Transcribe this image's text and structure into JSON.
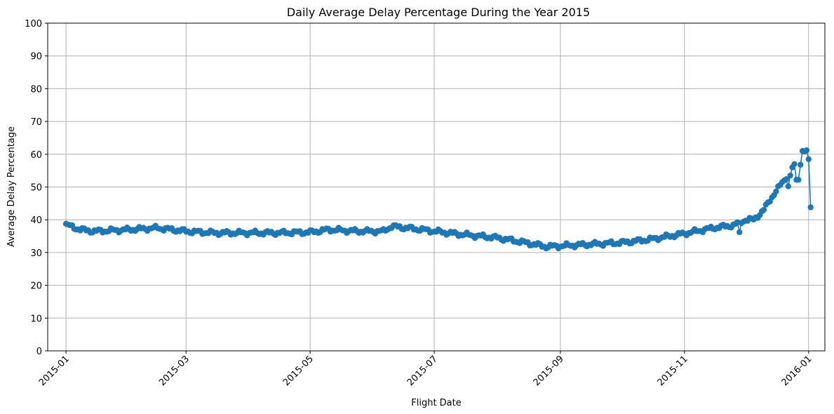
{
  "chart_data": {
    "type": "line",
    "title": "Daily Average Delay Percentage During the Year 2015",
    "xlabel": "Flight Date",
    "ylabel": "Average Delay Percentage",
    "ylim": [
      0,
      100
    ],
    "yticks": [
      0,
      10,
      20,
      30,
      40,
      50,
      60,
      70,
      80,
      90,
      100
    ],
    "ytick_labels": [
      "0",
      "10",
      "20",
      "30",
      "40",
      "50",
      "60",
      "70",
      "80",
      "90",
      "100"
    ],
    "xlim": [
      "2014-12-23",
      "2016-01-09"
    ],
    "xticks": [
      "2015-01-01",
      "2015-03-01",
      "2015-05-01",
      "2015-07-01",
      "2015-09-01",
      "2015-11-01",
      "2016-01-01"
    ],
    "xtick_labels": [
      "2015-01",
      "2015-03",
      "2015-05",
      "2015-07",
      "2015-09",
      "2015-11",
      "2016-01"
    ],
    "grid": true,
    "series_color": "#1f77b4",
    "marker": "circle",
    "anchors": [
      [
        "2015-01-01",
        38.5
      ],
      [
        "2015-01-08",
        37.0
      ],
      [
        "2015-01-15",
        36.5
      ],
      [
        "2015-02-01",
        37.0
      ],
      [
        "2015-02-15",
        37.5
      ],
      [
        "2015-03-01",
        36.5
      ],
      [
        "2015-03-15",
        36.0
      ],
      [
        "2015-04-01",
        36.0
      ],
      [
        "2015-04-15",
        36.0
      ],
      [
        "2015-05-01",
        36.2
      ],
      [
        "2015-05-10",
        37.0
      ],
      [
        "2015-05-25",
        36.5
      ],
      [
        "2015-06-06",
        36.5
      ],
      [
        "2015-06-10",
        38.0
      ],
      [
        "2015-06-25",
        37.0
      ],
      [
        "2015-07-01",
        36.5
      ],
      [
        "2015-07-15",
        35.5
      ],
      [
        "2015-08-01",
        34.5
      ],
      [
        "2015-08-15",
        33.0
      ],
      [
        "2015-08-25",
        31.8
      ],
      [
        "2015-09-01",
        32.0
      ],
      [
        "2015-09-15",
        32.5
      ],
      [
        "2015-10-01",
        33.0
      ],
      [
        "2015-10-15",
        34.0
      ],
      [
        "2015-11-01",
        35.8
      ],
      [
        "2015-11-15",
        37.5
      ],
      [
        "2015-11-25",
        38.3
      ],
      [
        "2015-12-01",
        40.0
      ],
      [
        "2015-12-05",
        40.0
      ],
      [
        "2015-12-10",
        43.0
      ],
      [
        "2015-12-15",
        48.0
      ],
      [
        "2015-12-20",
        52.0
      ],
      [
        "2015-12-24",
        56.5
      ],
      [
        "2015-12-26",
        54.0
      ]
    ],
    "overrides": [
      [
        "2015-11-28",
        36.2
      ],
      [
        "2015-12-22",
        50.2
      ],
      [
        "2015-12-23",
        53.5
      ],
      [
        "2015-12-24",
        56.0
      ],
      [
        "2015-12-25",
        57.0
      ],
      [
        "2015-12-26",
        52.2
      ],
      [
        "2015-12-27",
        52.2
      ],
      [
        "2015-12-28",
        56.8
      ],
      [
        "2015-12-29",
        61.0
      ],
      [
        "2015-12-30",
        60.8
      ],
      [
        "2015-12-31",
        61.2
      ],
      [
        "2016-01-01",
        58.5
      ],
      [
        "2016-01-02",
        43.8
      ]
    ]
  }
}
